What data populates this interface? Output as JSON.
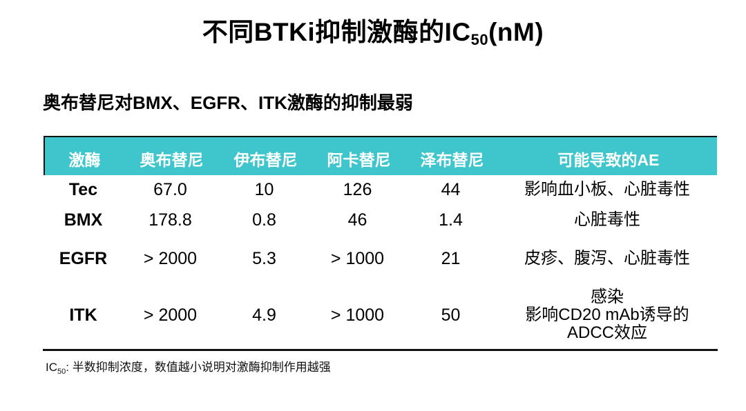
{
  "slide": {
    "title": {
      "prefix": "不同BTKi抑制激酶的IC",
      "subscript": "50",
      "suffix": "(nM)"
    },
    "subtitle": "奥布替尼对BMX、EGFR、ITK激酶的抑制最弱",
    "footnote": {
      "prefix": "IC",
      "subscript": "50",
      "text": ": 半数抑制浓度，数值越小说明对激酶抑制作用越强"
    }
  },
  "colors": {
    "header_band": "#3EC6CC",
    "header_text": "#FFFFFF",
    "body_text": "#000000",
    "rule": "#111111"
  },
  "table": {
    "headers": [
      "激酶",
      "奥布替尼",
      "伊布替尼",
      "阿卡替尼",
      "泽布替尼",
      "可能导致的AE"
    ],
    "rows": [
      {
        "kinase": "Tec",
        "values": [
          "67.0",
          "10",
          "126",
          "44"
        ],
        "ae": [
          "影响血小板、心脏毒性"
        ]
      },
      {
        "kinase": "BMX",
        "values": [
          "178.8",
          "0.8",
          "46",
          "1.4"
        ],
        "ae": [
          "心脏毒性"
        ]
      },
      {
        "kinase": "EGFR",
        "values": [
          "> 2000",
          "5.3",
          "> 1000",
          "21"
        ],
        "ae": [
          "皮疹、腹泻、心脏毒性"
        ]
      },
      {
        "kinase": "ITK",
        "values": [
          "> 2000",
          "4.9",
          "> 1000",
          "50"
        ],
        "ae": [
          "感染",
          "影响CD20 mAb诱导的",
          "ADCC效应"
        ]
      }
    ]
  },
  "chart_data": {
    "type": "table",
    "title": "不同BTKi抑制激酶的IC50(nM)",
    "subtitle": "奥布替尼对BMX、EGFR、ITK激酶的抑制最弱",
    "columns": [
      "激酶",
      "奥布替尼",
      "伊布替尼",
      "阿卡替尼",
      "泽布替尼",
      "可能导致的AE"
    ],
    "rows": [
      [
        "Tec",
        "67.0",
        "10",
        "126",
        "44",
        "影响血小板、心脏毒性"
      ],
      [
        "BMX",
        "178.8",
        "0.8",
        "46",
        "1.4",
        "心脏毒性"
      ],
      [
        "EGFR",
        "> 2000",
        "5.3",
        "> 1000",
        "21",
        "皮疹、腹泻、心脏毒性"
      ],
      [
        "ITK",
        "> 2000",
        "4.9",
        "> 1000",
        "50",
        "感染 影响CD20 mAb诱导的 ADCC效应"
      ]
    ],
    "footnote": "IC50: 半数抑制浓度，数值越小说明对激酶抑制作用越强"
  }
}
